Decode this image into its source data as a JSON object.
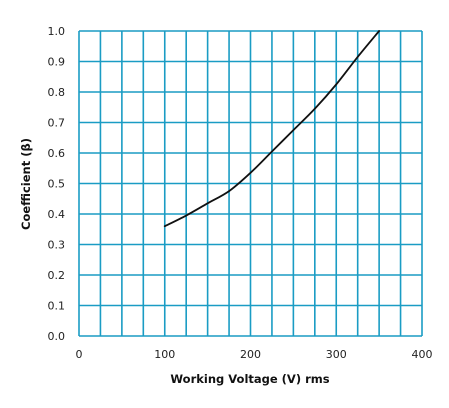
{
  "chart_data": {
    "type": "line",
    "title": "",
    "xlabel": "Working Voltage (V) rms",
    "ylabel": "Coefficient (β)",
    "xlim": [
      0,
      400
    ],
    "ylim": [
      0,
      1.0
    ],
    "x_ticks": [
      0,
      100,
      200,
      300,
      400
    ],
    "x_tick_labels": [
      "0",
      "100",
      "200",
      "300",
      "400"
    ],
    "y_ticks": [
      0,
      0.1,
      0.2,
      0.3,
      0.4,
      0.5,
      0.6,
      0.7,
      0.8,
      0.9,
      1.0
    ],
    "y_tick_labels": [
      "0.0",
      "0.1",
      "0.2",
      "0.3",
      "0.4",
      "0.5",
      "0.6",
      "0.7",
      "0.8",
      "0.9",
      "1.0"
    ],
    "x_grid_step": 25,
    "y_grid_step": 0.1,
    "grid": true,
    "legend": "none",
    "grid_color": "#1a9cc4",
    "line_color": "#111111",
    "series": [
      {
        "x": [
          100,
          125,
          150,
          175,
          200,
          225,
          250,
          275,
          300,
          325,
          350
        ],
        "y": [
          0.36,
          0.395,
          0.435,
          0.475,
          0.535,
          0.605,
          0.675,
          0.745,
          0.825,
          0.915,
          1.0
        ]
      }
    ]
  }
}
